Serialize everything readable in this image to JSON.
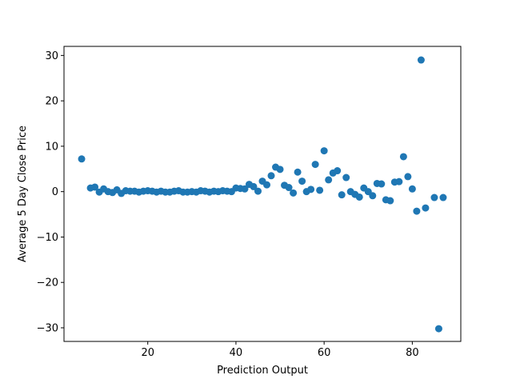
{
  "chart_data": {
    "type": "scatter",
    "title": "",
    "xlabel": "Prediction Output",
    "ylabel": "Average 5 Day Close Price",
    "xlim": [
      1,
      91
    ],
    "ylim": [
      -33,
      32
    ],
    "xticks": [
      20,
      40,
      60,
      80
    ],
    "yticks": [
      -30,
      -20,
      -10,
      0,
      10,
      20,
      30
    ],
    "grid": false,
    "legend": "none",
    "marker_color": "#1f77b4",
    "series": [
      {
        "x": [
          5,
          7,
          8,
          9,
          10,
          11,
          12,
          13,
          14,
          15,
          16,
          17,
          18,
          19,
          20,
          21,
          22,
          23,
          24,
          25,
          26,
          27,
          28,
          29,
          30,
          31,
          32,
          33,
          34,
          35,
          36,
          37,
          38,
          39,
          40,
          41,
          42,
          43,
          44,
          45,
          46,
          47,
          48,
          49,
          50,
          51,
          52,
          53,
          54,
          55,
          56,
          57,
          58,
          59,
          60,
          61,
          62,
          63,
          64,
          65,
          66,
          67,
          68,
          69,
          70,
          71,
          72,
          73,
          74,
          75,
          76,
          77,
          78,
          79,
          80,
          81,
          82,
          83,
          85,
          86,
          87
        ],
        "y": [
          7.2,
          0.8,
          1.0,
          -0.1,
          0.6,
          0.0,
          -0.2,
          0.4,
          -0.4,
          0.2,
          0.1,
          0.1,
          -0.1,
          0.1,
          0.2,
          0.1,
          -0.1,
          0.1,
          -0.1,
          -0.1,
          0.1,
          0.2,
          -0.1,
          -0.1,
          0.0,
          -0.1,
          0.2,
          0.1,
          -0.1,
          0.1,
          0.0,
          0.2,
          0.1,
          0.0,
          0.8,
          0.7,
          0.6,
          1.6,
          1.1,
          0.1,
          2.3,
          1.5,
          3.5,
          5.4,
          4.9,
          1.4,
          0.9,
          -0.3,
          4.3,
          2.3,
          0.0,
          0.5,
          6.0,
          0.3,
          9.0,
          2.6,
          4.1,
          4.6,
          -0.7,
          3.1,
          0.0,
          -0.6,
          -1.2,
          0.8,
          0.0,
          -0.9,
          1.8,
          1.7,
          -1.8,
          -2.0,
          2.1,
          2.2,
          7.7,
          3.3,
          0.6,
          -4.3,
          29.0,
          -3.6,
          -1.3,
          -30.2,
          -1.3
        ]
      }
    ]
  }
}
